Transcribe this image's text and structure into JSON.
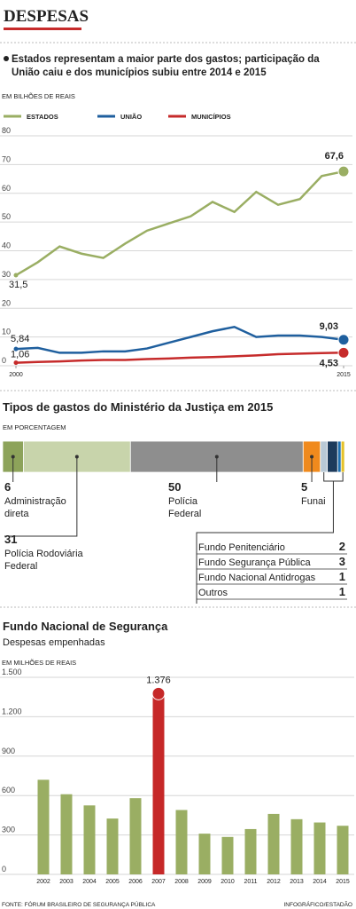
{
  "header": {
    "title": "DESPESAS"
  },
  "chart_data": [
    {
      "type": "line",
      "title": "Estados representam a maior parte dos gastos; participação da União caiu e dos municípios subiu entre 2014 e 2015",
      "unit": "EM BILHÕES DE REAIS",
      "x": [
        2000,
        2001,
        2002,
        2003,
        2004,
        2005,
        2006,
        2007,
        2008,
        2009,
        2010,
        2011,
        2012,
        2013,
        2014,
        2015
      ],
      "xlim": [
        2000,
        2015
      ],
      "xticks": [
        2000,
        2015
      ],
      "ylim": [
        0,
        80
      ],
      "yticks": [
        0,
        10,
        20,
        30,
        40,
        50,
        60,
        70,
        80
      ],
      "grid": true,
      "series": [
        {
          "name": "ESTADOS",
          "color": "#9aae63",
          "values": [
            31.5,
            36,
            41.5,
            39,
            37.5,
            42.5,
            47,
            49.5,
            52,
            57,
            53.5,
            60.5,
            56,
            58,
            66,
            67.6
          ],
          "value_labels": [
            "31,5",
            null,
            null,
            null,
            null,
            null,
            null,
            null,
            null,
            null,
            null,
            null,
            null,
            null,
            null,
            "67,6"
          ]
        },
        {
          "name": "UNIÃO",
          "color": "#1f5f9e",
          "values": [
            5.84,
            6.2,
            4.5,
            4.5,
            5,
            5,
            6,
            8,
            10,
            12,
            13.5,
            10,
            10.5,
            10.5,
            10,
            9.03
          ],
          "value_labels": [
            "5,84",
            null,
            null,
            null,
            null,
            null,
            null,
            null,
            null,
            null,
            null,
            null,
            null,
            null,
            null,
            "9,03"
          ]
        },
        {
          "name": "MUNICÍPIOS",
          "color": "#c62b2b",
          "values": [
            1.06,
            1.3,
            1.5,
            1.8,
            2,
            2,
            2.3,
            2.5,
            2.8,
            3,
            3.3,
            3.6,
            4,
            4.2,
            4.4,
            4.53
          ],
          "value_labels": [
            "1,06",
            null,
            null,
            null,
            null,
            null,
            null,
            null,
            null,
            null,
            null,
            null,
            null,
            null,
            null,
            "4,53"
          ]
        }
      ]
    },
    {
      "type": "stacked_bar",
      "title": "Tipos de gastos do Ministério da Justiça em 2015",
      "unit": "EM PORCENTAGEM",
      "xlim": [
        0,
        100
      ],
      "categories": [
        "Administração direta",
        "Polícia Rodoviária Federal",
        "Polícia Federal",
        "Funai",
        "Fundo Penitenciário",
        "Fundo Segurança Pública",
        "Fundo Nacional Antidrogas",
        "Outros"
      ],
      "values": [
        6,
        31,
        50,
        5,
        2,
        3,
        1,
        1
      ],
      "colors": [
        "#8da35a",
        "#c8d4ab",
        "#8e8e8e",
        "#f08a1d",
        "#b9c9d6",
        "#1d3b5c",
        "#1e6fb0",
        "#e5c229"
      ]
    },
    {
      "type": "bar",
      "title": "Fundo Nacional de Segurança",
      "subtitle": "Despesas empenhadas",
      "unit": "EM MILHÕES DE REAIS",
      "categories": [
        "2002",
        "2003",
        "2004",
        "2005",
        "2006",
        "2007",
        "2008",
        "2009",
        "2010",
        "2011",
        "2012",
        "2013",
        "2014",
        "2015"
      ],
      "values": [
        720,
        610,
        525,
        425,
        580,
        1376,
        490,
        310,
        285,
        345,
        460,
        420,
        395,
        370
      ],
      "value_labels": [
        null,
        null,
        null,
        null,
        null,
        "1.376",
        null,
        null,
        null,
        null,
        null,
        null,
        null,
        null
      ],
      "colors": [
        "#9aae63",
        "#9aae63",
        "#9aae63",
        "#9aae63",
        "#9aae63",
        "#c62828",
        "#9aae63",
        "#9aae63",
        "#9aae63",
        "#9aae63",
        "#9aae63",
        "#9aae63",
        "#9aae63",
        "#9aae63"
      ],
      "ylim": [
        0,
        1500
      ],
      "yticks": [
        0,
        300,
        600,
        900,
        {
          "value": 1200,
          "label": "1.200"
        },
        {
          "value": 1500,
          "label": "1.500"
        }
      ],
      "grid": true
    }
  ],
  "footer": {
    "source": "FONTE: FÓRUM BRASILEIRO DE SEGURANÇA PÚBLICA",
    "credit": "INFOGRÁFICO/ESTADÃO"
  }
}
